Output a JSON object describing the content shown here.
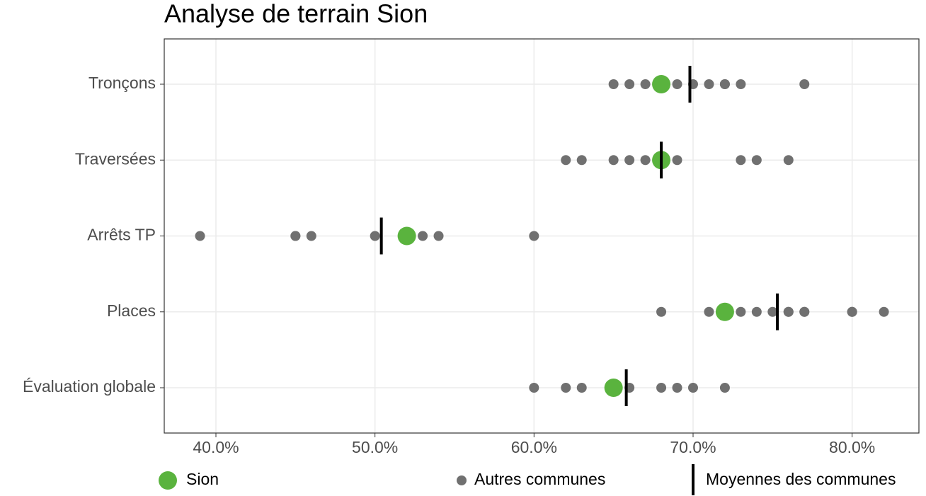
{
  "chart_data": {
    "type": "dot",
    "title": "Analyse de terrain Sion",
    "categories": [
      "Tronçons",
      "Traversées",
      "Arrêts TP",
      "Places",
      "Évaluation globale"
    ],
    "series": [
      {
        "name": "Sion",
        "color": "#5ab33e",
        "values": [
          68,
          68,
          52,
          72,
          65
        ]
      },
      {
        "name": "Autres communes",
        "color": "#707070",
        "values": [
          [
            65,
            66,
            67,
            69,
            70,
            71,
            72,
            72,
            73,
            77
          ],
          [
            62,
            63,
            65,
            66,
            67,
            68,
            69,
            73,
            74,
            76
          ],
          [
            39,
            45,
            45,
            46,
            50,
            53,
            54,
            60
          ],
          [
            68,
            71,
            73,
            74,
            75,
            76,
            76,
            77,
            77,
            80,
            80,
            82
          ],
          [
            60,
            62,
            63,
            66,
            68,
            69,
            70,
            72
          ]
        ]
      },
      {
        "name": "Moyennes des communes",
        "color": "#000000",
        "values": [
          69.8,
          68.0,
          50.4,
          75.3,
          65.8
        ]
      }
    ],
    "xlim": [
      36.75,
      84.2
    ],
    "xticks": [
      {
        "value": 40,
        "label": "40.0%"
      },
      {
        "value": 50,
        "label": "50.0%"
      },
      {
        "value": 60,
        "label": "60.0%"
      },
      {
        "value": 70,
        "label": "70.0%"
      },
      {
        "value": 80,
        "label": "80.0%"
      }
    ],
    "grid": true,
    "legend": "bottom"
  }
}
